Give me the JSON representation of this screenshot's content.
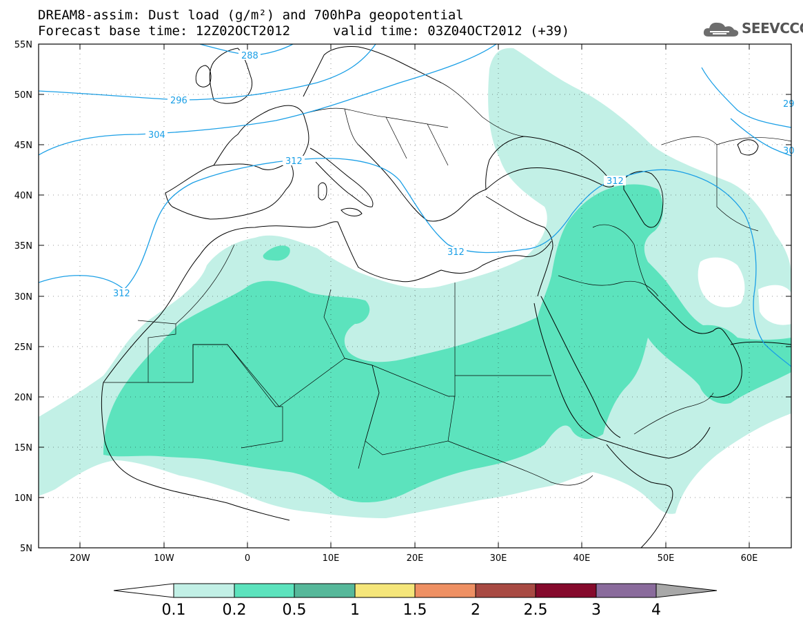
{
  "title": {
    "line1": "DREAM8-assim: Dust load (g/m²) and 700hPa geopotential",
    "base_time": "Forecast base time: 12Z02OCT2012",
    "valid_time": "valid time: 03Z04OCT2012 (+39)"
  },
  "logo": {
    "text": "SEEVCCC",
    "icon": "cloud-icon"
  },
  "map": {
    "lat_labels": [
      "55N",
      "50N",
      "45N",
      "40N",
      "35N",
      "30N",
      "25N",
      "20N",
      "15N",
      "10N",
      "5N"
    ],
    "lon_labels": [
      "20W",
      "10W",
      "0",
      "10E",
      "20E",
      "30E",
      "40E",
      "50E",
      "60E"
    ],
    "colors": {
      "land_outline": "#000000",
      "contour": "#1a9fe6"
    }
  },
  "contours": {
    "labels": [
      "288",
      "296",
      "304",
      "312",
      "312",
      "312",
      "312",
      "29",
      "30"
    ]
  },
  "colorbar": {
    "ticks": [
      "0.1",
      "0.2",
      "0.5",
      "1",
      "1.5",
      "2",
      "2.5",
      "3",
      "4"
    ],
    "colors": [
      "#ffffff",
      "#c2f0e6",
      "#5ce3bd",
      "#56b89a",
      "#f5e67a",
      "#ee9063",
      "#a84a43",
      "#850a2c",
      "#8a6b9c",
      "#a8a8a8"
    ]
  }
}
